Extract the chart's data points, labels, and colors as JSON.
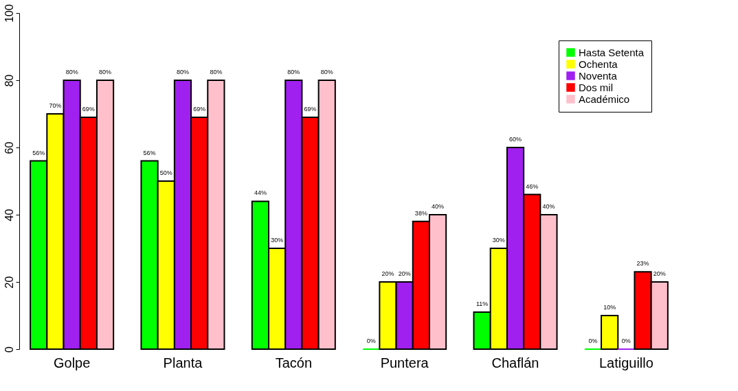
{
  "chart_data": {
    "type": "bar",
    "categories": [
      "Golpe",
      "Planta",
      "Tacón",
      "Puntera",
      "Chaflán",
      "Latiguillo"
    ],
    "series": [
      {
        "name": "Hasta Setenta",
        "color": "#00ff00",
        "values": [
          56,
          56,
          44,
          0,
          11,
          0
        ],
        "value_labels": [
          "56%",
          "56%",
          "44%",
          "0%",
          "11%",
          "0%"
        ]
      },
      {
        "name": "Ochenta",
        "color": "#ffff00",
        "values": [
          70,
          50,
          30,
          20,
          30,
          10
        ],
        "value_labels": [
          "70%",
          "50%",
          "30%",
          "20%",
          "30%",
          "10%"
        ]
      },
      {
        "name": "Noventa",
        "color": "#a020f0",
        "values": [
          80,
          80,
          80,
          20,
          60,
          0
        ],
        "value_labels": [
          "80%",
          "80%",
          "80%",
          "20%",
          "60%",
          "0%"
        ]
      },
      {
        "name": "Dos mil",
        "color": "#ff0000",
        "values": [
          69,
          69,
          69,
          38,
          46,
          23
        ],
        "value_labels": [
          "69%",
          "69%",
          "69%",
          "38%",
          "46%",
          "23%"
        ]
      },
      {
        "name": "Académico",
        "color": "#ffc0cb",
        "values": [
          80,
          80,
          80,
          40,
          40,
          20
        ],
        "value_labels": [
          "80%",
          "80%",
          "80%",
          "40%",
          "40%",
          "20%"
        ]
      }
    ],
    "ylim": [
      0,
      100
    ],
    "yticks": [
      0,
      20,
      40,
      60,
      80,
      100
    ],
    "grid": false,
    "legend": "top right"
  }
}
